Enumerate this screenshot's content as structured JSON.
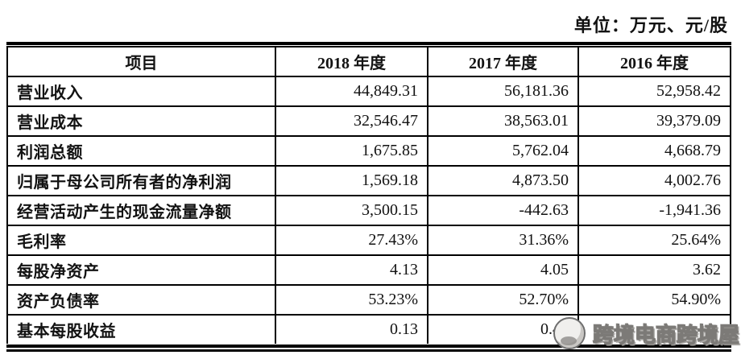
{
  "meta": {
    "unit_label": "单位：万元、元/股"
  },
  "table": {
    "columns": [
      "项目",
      "2018 年度",
      "2017 年度",
      "2016 年度"
    ],
    "rows": [
      {
        "label": "营业收入",
        "values": [
          "44,849.31",
          "56,181.36",
          "52,958.42"
        ]
      },
      {
        "label": "营业成本",
        "values": [
          "32,546.47",
          "38,563.01",
          "39,379.09"
        ]
      },
      {
        "label": "利润总额",
        "values": [
          "1,675.85",
          "5,762.04",
          "4,668.79"
        ]
      },
      {
        "label": "归属于母公司所有者的净利润",
        "values": [
          "1,569.18",
          "4,873.50",
          "4,002.76"
        ]
      },
      {
        "label": "经营活动产生的现金流量净额",
        "values": [
          "3,500.15",
          "-442.63",
          "-1,941.36"
        ]
      },
      {
        "label": "毛利率",
        "values": [
          "27.43%",
          "31.36%",
          "25.64%"
        ]
      },
      {
        "label": "每股净资产",
        "values": [
          "4.13",
          "4.05",
          "3.62"
        ]
      },
      {
        "label": "资产负债率",
        "values": [
          "53.23%",
          "52.70%",
          "54.90%"
        ]
      },
      {
        "label": "基本每股收益",
        "values": [
          "0.13",
          "0.41",
          ""
        ]
      }
    ]
  },
  "watermark": {
    "text": "跨境电商跨境屋",
    "icon": "watermark-logo-icon"
  },
  "colors": {
    "background": "#ffffff",
    "text": "#121212",
    "border": "#000000",
    "watermark_gray": "#7c7a77"
  }
}
